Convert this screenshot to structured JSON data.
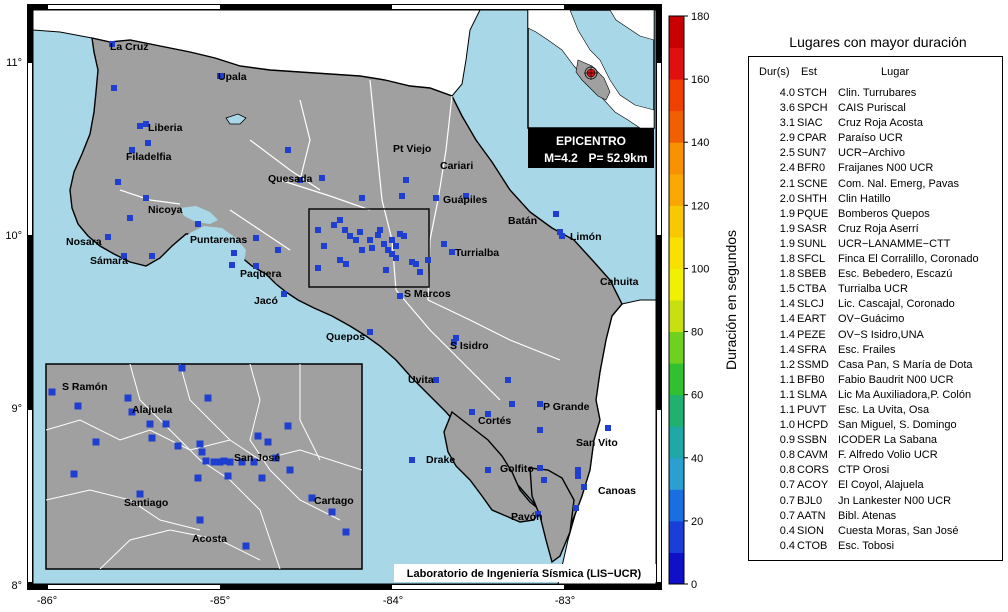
{
  "map": {
    "x_ticks": [
      "-86°",
      "-85°",
      "-84°",
      "-83°"
    ],
    "y_ticks": [
      "11°",
      "10°",
      "9°",
      "8°"
    ],
    "cities": [
      {
        "name": "La Cruz"
      },
      {
        "name": "Upala"
      },
      {
        "name": "Liberia"
      },
      {
        "name": "Filadelfia"
      },
      {
        "name": "Nicoya"
      },
      {
        "name": "Nosara"
      },
      {
        "name": "Sámara"
      },
      {
        "name": "Puntarenas"
      },
      {
        "name": "Paquera"
      },
      {
        "name": "Jacó"
      },
      {
        "name": "Quesada"
      },
      {
        "name": "Pt Viejo"
      },
      {
        "name": "Cariari"
      },
      {
        "name": "Guápiles"
      },
      {
        "name": "Batán"
      },
      {
        "name": "Limón"
      },
      {
        "name": "Turrialba"
      },
      {
        "name": "S Marcos"
      },
      {
        "name": "Quepos"
      },
      {
        "name": "S Isidro"
      },
      {
        "name": "Cahuita"
      },
      {
        "name": "Uvita"
      },
      {
        "name": "P Grande"
      },
      {
        "name": "Cortés"
      },
      {
        "name": "San Vito"
      },
      {
        "name": "Drake"
      },
      {
        "name": "Golfito"
      },
      {
        "name": "Canoas"
      },
      {
        "name": "Pavón"
      }
    ],
    "inset_cities": [
      {
        "name": "S Ramón"
      },
      {
        "name": "Alajuela"
      },
      {
        "name": "San José"
      },
      {
        "name": "Santiago"
      },
      {
        "name": "Cartago"
      },
      {
        "name": "Acosta"
      }
    ],
    "station_marker_color": "#1f3fd0",
    "land_color": "#a0a0a0",
    "sea_color": "#a8d8e8",
    "epicenter": {
      "title": "EPICENTRO",
      "magnitude": "M=4.2",
      "depth": "P= 52.9km",
      "marker_color": "#e01010"
    },
    "credit": "Laboratorio de Ingeniería Sísmica (LIS−UCR)"
  },
  "colorbar": {
    "title": "Duración en segundos",
    "ticks": [
      "0",
      "20",
      "40",
      "60",
      "80",
      "100",
      "120",
      "140",
      "160",
      "180"
    ],
    "colors": [
      "#1010c8",
      "#1a4fd8",
      "#2a8fc8",
      "#20a888",
      "#30c030",
      "#a8d820",
      "#f0f000",
      "#f8c800",
      "#f89000",
      "#f05000",
      "#e01010",
      "#c80000"
    ]
  },
  "table": {
    "title": "Lugares con mayor duración",
    "headers": {
      "dur": "Dur(s)",
      "est": "Est",
      "lugar": "Lugar"
    },
    "rows": [
      {
        "dur": "4.0",
        "est": "STCH",
        "lugar": "Clin. Turrubares"
      },
      {
        "dur": "3.6",
        "est": "SPCH",
        "lugar": "CAIS Puriscal"
      },
      {
        "dur": "3.1",
        "est": "SIAC",
        "lugar": "Cruz Roja Acosta"
      },
      {
        "dur": "2.9",
        "est": "CPAR",
        "lugar": "Paraíso UCR"
      },
      {
        "dur": "2.5",
        "est": "SUN7",
        "lugar": "UCR−Archivo"
      },
      {
        "dur": "2.4",
        "est": "BFR0",
        "lugar": "Fraijanes N00 UCR"
      },
      {
        "dur": "2.1",
        "est": "SCNE",
        "lugar": "Com. Nal. Emerg, Pavas"
      },
      {
        "dur": "2.0",
        "est": "SHTH",
        "lugar": "Clin Hatillo"
      },
      {
        "dur": "1.9",
        "est": "PQUE",
        "lugar": "Bomberos Quepos"
      },
      {
        "dur": "1.9",
        "est": "SASR",
        "lugar": "Cruz Roja Aserrí"
      },
      {
        "dur": "1.9",
        "est": "SUNL",
        "lugar": "UCR−LANAMME−CTT"
      },
      {
        "dur": "1.8",
        "est": "SFCL",
        "lugar": "Finca El Corralillo, Coronado"
      },
      {
        "dur": "1.8",
        "est": "SBEB",
        "lugar": "Esc. Bebedero, Escazú"
      },
      {
        "dur": "1.5",
        "est": "CTBA",
        "lugar": "Turrialba UCR"
      },
      {
        "dur": "1.4",
        "est": "SLCJ",
        "lugar": "Lic. Cascajal, Coronado"
      },
      {
        "dur": "1.4",
        "est": "EART",
        "lugar": "OV−Guácimo"
      },
      {
        "dur": "1.4",
        "est": "PEZE",
        "lugar": "OV−S Isidro,UNA"
      },
      {
        "dur": "1.4",
        "est": "SFRA",
        "lugar": "Esc. Frailes"
      },
      {
        "dur": "1.2",
        "est": "SSMD",
        "lugar": "Casa Pan, S María de Dota"
      },
      {
        "dur": "1.1",
        "est": "BFB0",
        "lugar": "Fabio Baudrit N00 UCR"
      },
      {
        "dur": "1.1",
        "est": "SLMA",
        "lugar": "Lic Ma Auxiliadora,P. Colón"
      },
      {
        "dur": "1.1",
        "est": "PUVT",
        "lugar": "Esc. La Uvita, Osa"
      },
      {
        "dur": "1.0",
        "est": "HCPD",
        "lugar": "San Miguel, S. Domingo"
      },
      {
        "dur": "0.9",
        "est": "SSBN",
        "lugar": "ICODER La Sabana"
      },
      {
        "dur": "0.8",
        "est": "CAVM",
        "lugar": "F. Alfredo Volio UCR"
      },
      {
        "dur": "0.8",
        "est": "CORS",
        "lugar": "CTP Orosi"
      },
      {
        "dur": "0.7",
        "est": "ACOY",
        "lugar": "El Coyol, Alajuela"
      },
      {
        "dur": "0.7",
        "est": "BJL0",
        "lugar": "Jn Lankester N00 UCR"
      },
      {
        "dur": "0.7",
        "est": "AATN",
        "lugar": "Bibl. Atenas"
      },
      {
        "dur": "0.4",
        "est": "SION",
        "lugar": "Cuesta Moras, San José"
      },
      {
        "dur": "0.4",
        "est": "CTOB",
        "lugar": "Esc. Tobosi"
      }
    ]
  }
}
